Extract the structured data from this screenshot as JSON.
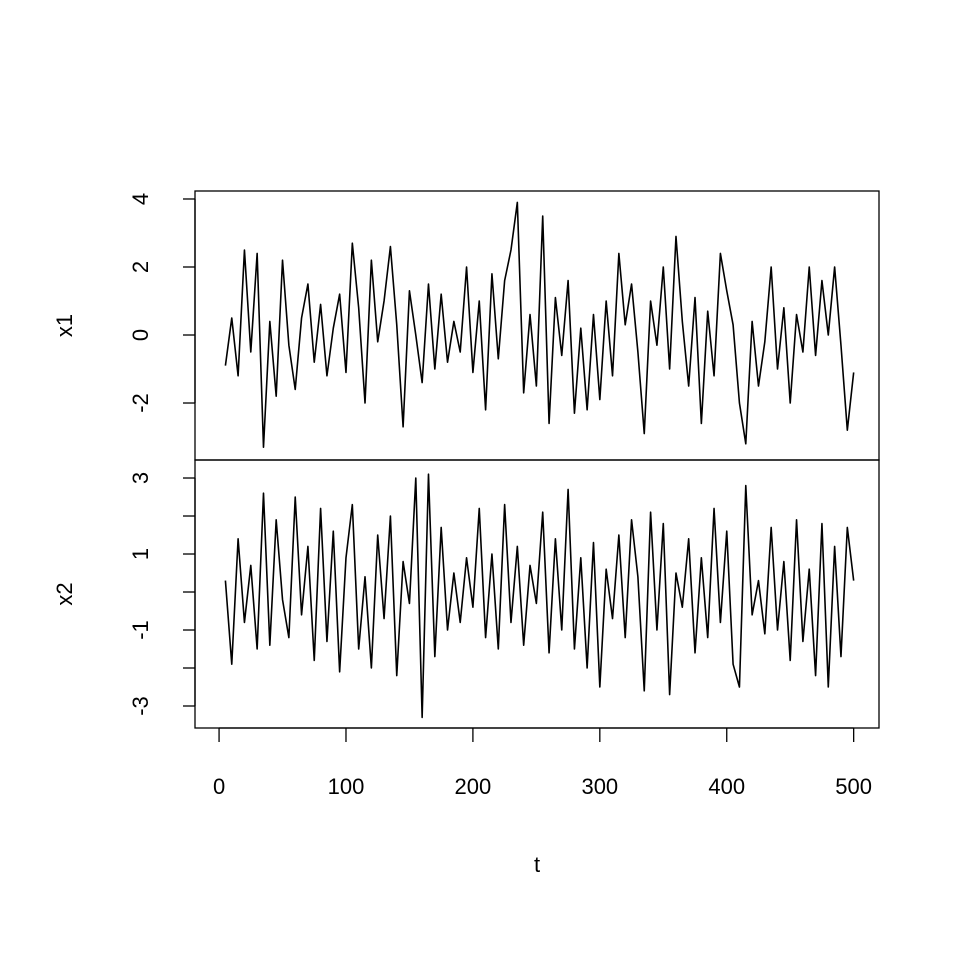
{
  "chart_data": {
    "type": "line",
    "xlabel": "t",
    "xlim": [
      -18.96,
      519.96
    ],
    "xticks": [
      0,
      100,
      200,
      300,
      400,
      500
    ],
    "x": [
      5,
      10,
      15,
      20,
      25,
      30,
      35,
      40,
      45,
      50,
      55,
      60,
      65,
      70,
      75,
      80,
      85,
      90,
      95,
      100,
      105,
      110,
      115,
      120,
      125,
      130,
      135,
      140,
      145,
      150,
      155,
      160,
      165,
      170,
      175,
      180,
      185,
      190,
      195,
      200,
      205,
      210,
      215,
      220,
      225,
      230,
      235,
      240,
      245,
      250,
      255,
      260,
      265,
      270,
      275,
      280,
      285,
      290,
      295,
      300,
      305,
      310,
      315,
      320,
      325,
      330,
      335,
      340,
      345,
      350,
      355,
      360,
      365,
      370,
      375,
      380,
      385,
      390,
      395,
      400,
      405,
      410,
      415,
      420,
      425,
      430,
      435,
      440,
      445,
      450,
      455,
      460,
      465,
      470,
      475,
      480,
      485,
      490,
      495,
      500
    ],
    "series": [
      {
        "name": "x1",
        "color": "#000000",
        "ylim": [
          -3.676,
          4.235
        ],
        "yticks": [
          -2,
          0,
          2,
          4
        ],
        "values": [
          -0.9,
          0.5,
          -1.2,
          2.5,
          -0.5,
          2.4,
          -3.3,
          0.4,
          -1.8,
          2.2,
          -0.3,
          -1.6,
          0.5,
          1.5,
          -0.8,
          0.9,
          -1.2,
          0.2,
          1.2,
          -1.1,
          2.7,
          0.8,
          -2.0,
          2.2,
          -0.2,
          1.0,
          2.6,
          0.3,
          -2.7,
          1.3,
          0.0,
          -1.4,
          1.5,
          -1.0,
          1.2,
          -0.8,
          0.4,
          -0.5,
          2.0,
          -1.1,
          1.0,
          -2.2,
          1.8,
          -0.7,
          1.6,
          2.5,
          3.9,
          -1.7,
          0.6,
          -1.5,
          3.5,
          -2.6,
          1.1,
          -0.6,
          1.6,
          -2.3,
          0.2,
          -2.2,
          0.6,
          -1.9,
          1.0,
          -1.2,
          2.4,
          0.3,
          1.5,
          -0.5,
          -2.9,
          1.0,
          -0.3,
          2.0,
          -1.0,
          2.9,
          0.4,
          -1.5,
          1.1,
          -2.6,
          0.7,
          -1.2,
          2.4,
          1.3,
          0.3,
          -2.0,
          -3.2,
          0.4,
          -1.5,
          -0.2,
          2.0,
          -1.0,
          0.8,
          -2.0,
          0.6,
          -0.5,
          2.0,
          -0.6,
          1.6,
          0.0,
          2.0,
          -0.3,
          -2.8,
          -1.1
        ]
      },
      {
        "name": "x2",
        "color": "#000000",
        "ylim": [
          -3.579,
          3.474
        ],
        "yticks": [
          -3,
          -1,
          1,
          3
        ],
        "yminor_ticks": [
          -2,
          0,
          2
        ],
        "values": [
          0.3,
          -1.9,
          1.4,
          -0.8,
          0.7,
          -1.5,
          2.6,
          -1.4,
          1.9,
          -0.2,
          -1.2,
          2.5,
          -0.6,
          1.2,
          -1.8,
          2.2,
          -1.3,
          1.6,
          -2.1,
          0.9,
          2.3,
          -1.5,
          0.4,
          -2.0,
          1.5,
          -0.7,
          2.0,
          -2.2,
          0.8,
          -0.3,
          3.0,
          -3.3,
          3.1,
          -1.7,
          1.7,
          -1.0,
          0.5,
          -0.8,
          0.9,
          -0.4,
          2.2,
          -1.2,
          1.0,
          -1.5,
          2.3,
          -0.8,
          1.2,
          -1.4,
          0.7,
          -0.3,
          2.1,
          -1.6,
          1.4,
          -1.0,
          2.7,
          -1.5,
          0.9,
          -2.0,
          1.3,
          -2.5,
          0.6,
          -0.7,
          1.5,
          -1.2,
          1.9,
          0.4,
          -2.6,
          2.1,
          -1.0,
          1.8,
          -2.7,
          0.5,
          -0.4,
          1.4,
          -1.6,
          0.9,
          -1.2,
          2.2,
          -0.8,
          1.6,
          -1.9,
          -2.5,
          2.8,
          -0.6,
          0.3,
          -1.1,
          1.7,
          -1.0,
          0.8,
          -1.8,
          1.9,
          -1.3,
          0.6,
          -2.2,
          1.8,
          -2.5,
          1.2,
          -1.7,
          1.7,
          0.3
        ]
      }
    ]
  }
}
